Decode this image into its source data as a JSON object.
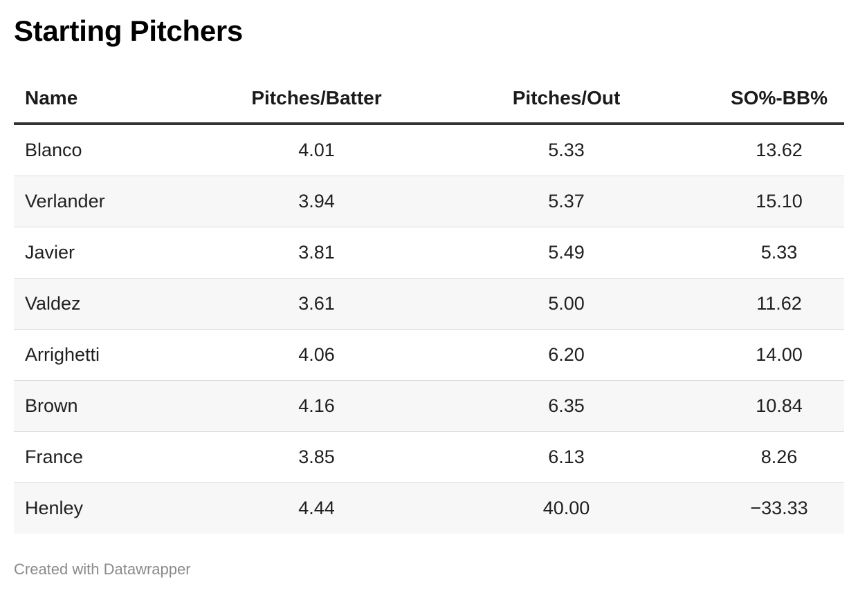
{
  "title": "Starting Pitchers",
  "credit": "Created with Datawrapper",
  "chart_data": {
    "type": "table",
    "title": "Starting Pitchers",
    "columns": [
      "Name",
      "Pitches/Batter",
      "Pitches/Out",
      "SO%-BB%"
    ],
    "rows": [
      [
        "Blanco",
        "4.01",
        "5.33",
        "13.62"
      ],
      [
        "Verlander",
        "3.94",
        "5.37",
        "15.10"
      ],
      [
        "Javier",
        "3.81",
        "5.49",
        "5.33"
      ],
      [
        "Valdez",
        "3.61",
        "5.00",
        "11.62"
      ],
      [
        "Arrighetti",
        "4.06",
        "6.20",
        "14.00"
      ],
      [
        "Brown",
        "4.16",
        "6.35",
        "10.84"
      ],
      [
        "France",
        "3.85",
        "6.13",
        "8.26"
      ],
      [
        "Henley",
        "4.44",
        "40.00",
        "−33.33"
      ]
    ]
  }
}
